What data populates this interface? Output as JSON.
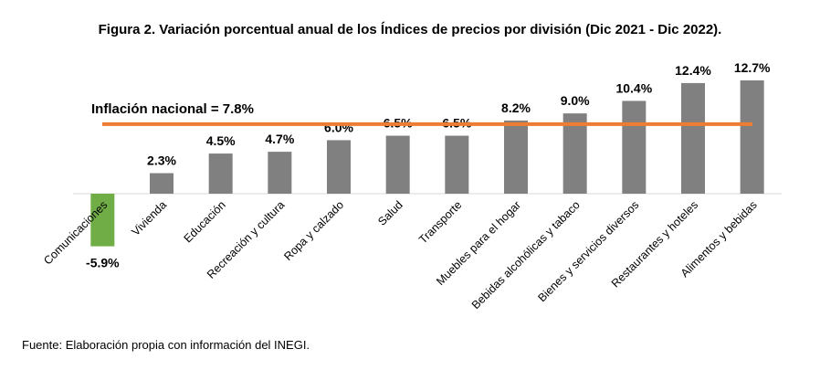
{
  "chart_data": {
    "type": "bar",
    "title": "Figura 2. Variación porcentual anual de los Índices de precios por división (Dic 2021 - Dic 2022).",
    "source": "Fuente: Elaboración propia con información del INEGI.",
    "categories": [
      "Comunicaciones",
      "Vivienda",
      "Educación",
      "Recreación y cultura",
      "Ropa y calzado",
      "Salud",
      "Transporte",
      "Muebles para el hogar",
      "Bebidas alcohólicas y tabaco",
      "Bienes y servicios diversos",
      "Restaurantes y hoteles",
      "Alimentos y bebidas"
    ],
    "values": [
      -5.9,
      2.3,
      4.5,
      4.7,
      6.0,
      6.5,
      6.5,
      8.2,
      9.0,
      10.4,
      12.4,
      12.7
    ],
    "value_labels": [
      "-5.9%",
      "2.3%",
      "4.5%",
      "4.7%",
      "6.0%",
      "6.5%",
      "6.5%",
      "8.2%",
      "9.0%",
      "10.4%",
      "12.4%",
      "12.7%"
    ],
    "reference_line": {
      "value": 7.8,
      "label": "Inflación nacional = 7.8%",
      "color": "#ED7D31"
    },
    "colors": {
      "positive": "#808080",
      "negative": "#70AD47",
      "axis": "#D9D9D9"
    },
    "grid": false,
    "legend": "none"
  }
}
